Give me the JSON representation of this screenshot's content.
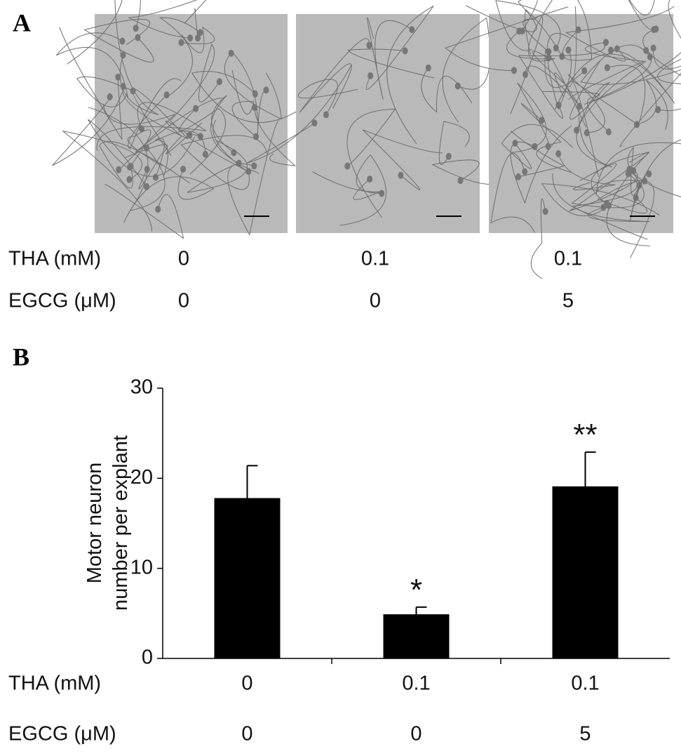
{
  "panel_a": {
    "label": "A",
    "conditions": [
      {
        "label": "THA (mM)",
        "values": [
          "0",
          "0.1",
          "0.1"
        ]
      },
      {
        "label": "EGCG (μM)",
        "values": [
          "0",
          "0",
          "5"
        ]
      }
    ]
  },
  "chart_data": {
    "type": "bar",
    "panel_label": "B",
    "y_label": [
      "Motor neuron",
      "number per explant"
    ],
    "values": [
      17.8,
      4.9,
      19.1
    ],
    "errors": [
      3.6,
      0.8,
      3.8
    ],
    "annotations": [
      null,
      "*",
      "**"
    ],
    "color": "#000000",
    "ylim": [
      0,
      30
    ],
    "yticks": [
      0,
      10,
      20,
      30
    ],
    "conditions": [
      {
        "label": "THA (mM)",
        "values": [
          "0",
          "0.1",
          "0.1"
        ]
      },
      {
        "label": "EGCG (μM)",
        "values": [
          "0",
          "0",
          "5"
        ]
      }
    ]
  }
}
